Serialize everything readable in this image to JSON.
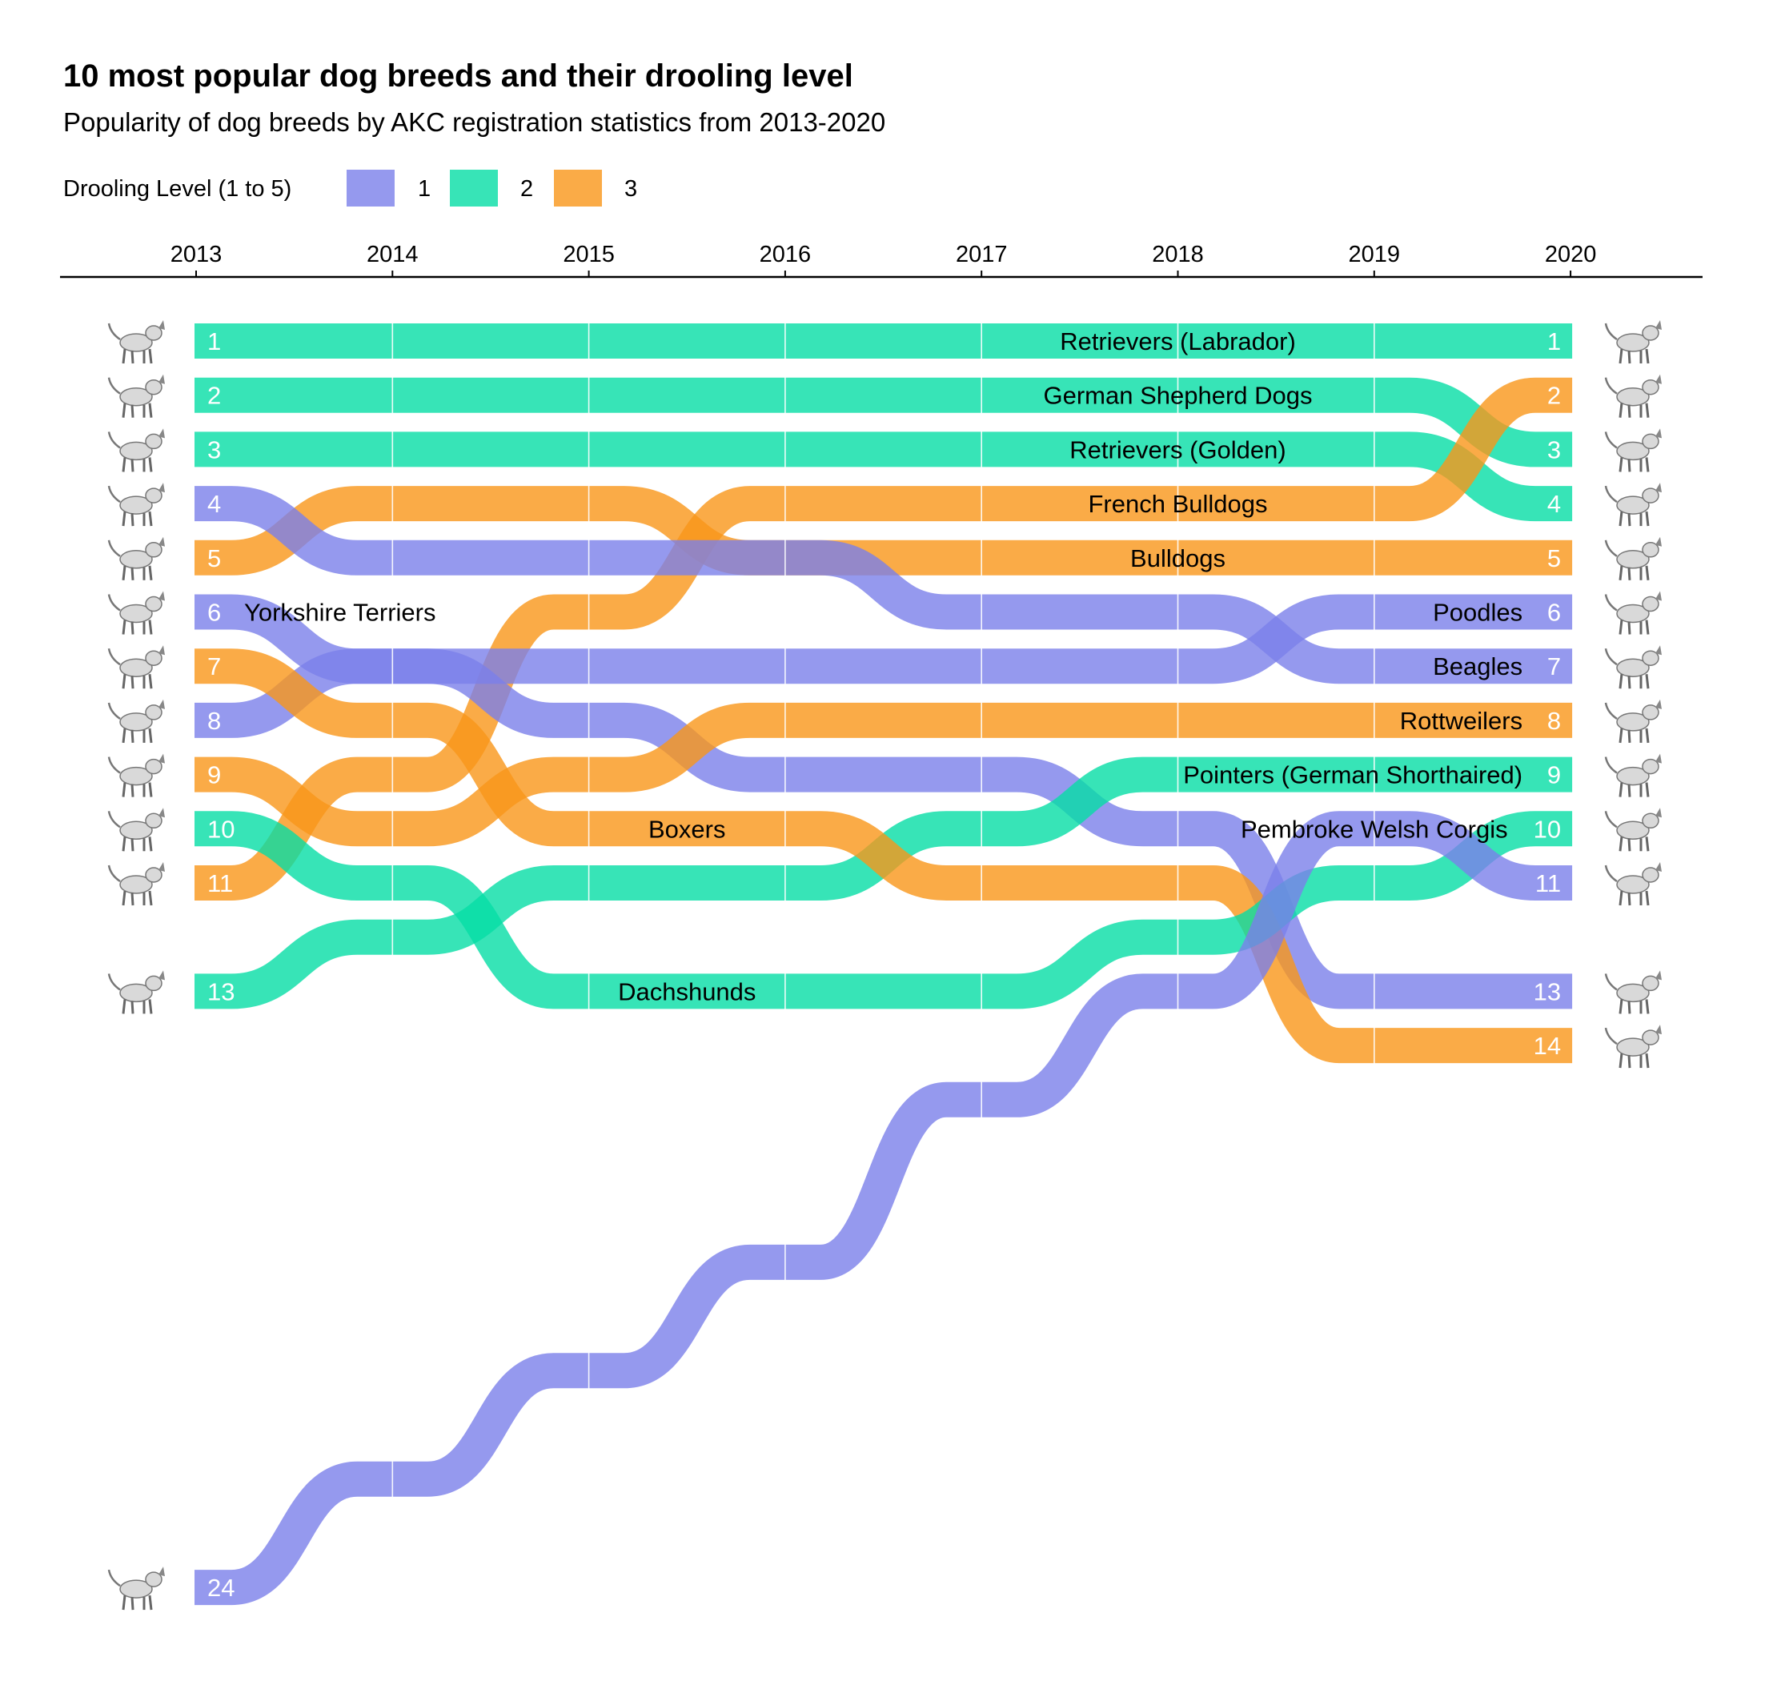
{
  "chart_data": {
    "type": "bump",
    "title": "10 most popular dog breeds and their drooling level",
    "subtitle": "Popularity of dog breeds by AKC registration statistics from 2013-2020",
    "legend": {
      "title": "Drooling Level (1 to 5)",
      "placement": "top-left",
      "entries": [
        {
          "level": 1,
          "label": "1",
          "color": "#7B7FEA"
        },
        {
          "level": 2,
          "label": "2",
          "color": "#05DDA5"
        },
        {
          "level": 3,
          "label": "3",
          "color": "#F99619"
        }
      ]
    },
    "x": [
      "2013",
      "2014",
      "2015",
      "2016",
      "2017",
      "2018",
      "2019",
      "2020"
    ],
    "y_axis": {
      "reversed": true,
      "label": ""
    },
    "icon_style": "dog-sketch-icon",
    "series": [
      {
        "name": "Retrievers (Labrador)",
        "drool": 2,
        "ranks": [
          1,
          1,
          1,
          1,
          1,
          1,
          1,
          1
        ],
        "label_at": "2018",
        "left_icon": "labrador-icon",
        "right_icon": "labrador-icon"
      },
      {
        "name": "German Shepherd Dogs",
        "drool": 2,
        "ranks": [
          2,
          2,
          2,
          2,
          2,
          2,
          2,
          3
        ],
        "label_at": "2018",
        "left_icon": "german-shepherd-icon",
        "right_icon": "german-shepherd-icon"
      },
      {
        "name": "Retrievers (Golden)",
        "drool": 2,
        "ranks": [
          3,
          3,
          3,
          3,
          3,
          3,
          3,
          4
        ],
        "label_at": "2018",
        "left_icon": "golden-retriever-icon",
        "right_icon": "golden-retriever-icon"
      },
      {
        "name": "French Bulldogs",
        "drool": 3,
        "ranks": [
          11,
          9,
          6,
          4,
          4,
          4,
          4,
          2
        ],
        "label_at": "2018",
        "left_icon": "french-bulldog-icon",
        "right_icon": "french-bulldog-icon"
      },
      {
        "name": "Bulldogs",
        "drool": 3,
        "ranks": [
          5,
          4,
          4,
          5,
          5,
          5,
          5,
          5
        ],
        "label_at": "2018",
        "left_icon": "bulldog-icon",
        "right_icon": "bulldog-icon"
      },
      {
        "name": "Yorkshire Terriers",
        "drool": 1,
        "ranks": [
          6,
          7,
          8,
          9,
          9,
          10,
          13,
          13
        ],
        "label_at": "2013",
        "label_align": "left",
        "left_icon": "yorkshire-terrier-icon",
        "right_icon": "yorkshire-terrier-icon"
      },
      {
        "name": "Poodles",
        "drool": 1,
        "ranks": [
          8,
          7,
          7,
          7,
          7,
          7,
          6,
          6
        ],
        "label_at": "2020",
        "label_align": "right",
        "left_icon": "poodle-icon",
        "right_icon": "poodle-icon"
      },
      {
        "name": "Beagles",
        "drool": 1,
        "ranks": [
          4,
          5,
          5,
          5,
          6,
          6,
          7,
          7
        ],
        "label_at": "2020",
        "label_align": "right",
        "left_icon": "beagle-icon",
        "right_icon": "beagle-icon"
      },
      {
        "name": "Rottweilers",
        "drool": 3,
        "ranks": [
          9,
          10,
          9,
          8,
          8,
          8,
          8,
          8
        ],
        "label_at": "2020",
        "label_align": "right",
        "left_icon": "rottweiler-icon",
        "right_icon": "rottweiler-icon"
      },
      {
        "name": "Pointers (German Shorthaired)",
        "drool": 2,
        "ranks": [
          13,
          12,
          11,
          11,
          10,
          9,
          9,
          9
        ],
        "label_at": "2020",
        "label_align": "right",
        "left_icon": "pointer-icon",
        "right_icon": "pointer-icon"
      },
      {
        "name": "Boxers",
        "drool": 3,
        "ranks": [
          7,
          8,
          10,
          10,
          11,
          11,
          14,
          14
        ],
        "label_at": "2015.5",
        "left_icon": "boxer-icon",
        "right_icon": "boxer-icon"
      },
      {
        "name": "Dachshunds",
        "drool": 2,
        "ranks": [
          10,
          11,
          13,
          13,
          13,
          12,
          11,
          10
        ],
        "label_at": "2015.5",
        "left_icon": "dachshund-icon",
        "right_icon": "dachshund-icon"
      },
      {
        "name": "Pembroke Welsh Corgis",
        "drool": 1,
        "ranks": [
          24,
          22,
          20,
          18,
          15,
          13,
          10,
          11
        ],
        "label_at": "2019",
        "label_row": 10,
        "left_icon": "bulldog-icon",
        "right_icon": "bulldog-icon"
      }
    ]
  }
}
